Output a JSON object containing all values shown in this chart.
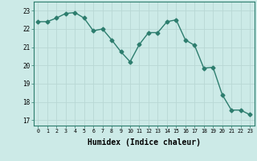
{
  "x": [
    0,
    1,
    2,
    3,
    4,
    5,
    6,
    7,
    8,
    9,
    10,
    11,
    12,
    13,
    14,
    15,
    16,
    17,
    18,
    19,
    20,
    21,
    22,
    23
  ],
  "y": [
    22.4,
    22.4,
    22.6,
    22.85,
    22.9,
    22.6,
    21.9,
    22.0,
    21.4,
    20.75,
    20.2,
    21.15,
    21.8,
    21.8,
    22.4,
    22.5,
    21.4,
    21.1,
    19.85,
    19.9,
    18.4,
    17.55,
    17.55,
    17.3
  ],
  "line_color": "#2d7d6e",
  "marker": "D",
  "marker_size": 2.5,
  "linewidth": 1.0,
  "bg_color": "#cceae7",
  "grid_color": "#b8d8d4",
  "xlabel": "Humidex (Indice chaleur)",
  "xlabel_fontsize": 7,
  "ylabel_ticks": [
    17,
    18,
    19,
    20,
    21,
    22,
    23
  ],
  "xtick_labels": [
    "0",
    "1",
    "2",
    "3",
    "4",
    "5",
    "6",
    "7",
    "8",
    "9",
    "10",
    "11",
    "12",
    "13",
    "14",
    "15",
    "16",
    "17",
    "18",
    "19",
    "20",
    "21",
    "22",
    "23"
  ],
  "ylim": [
    16.7,
    23.5
  ],
  "xlim": [
    -0.5,
    23.5
  ]
}
